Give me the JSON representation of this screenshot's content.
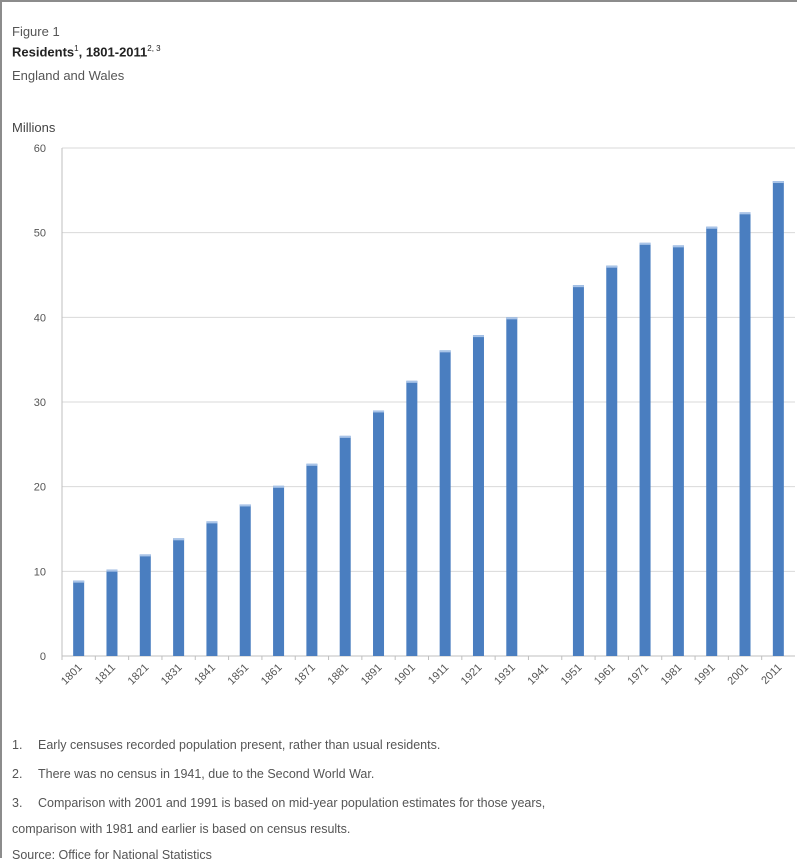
{
  "header": {
    "figure_label": "Figure 1",
    "title": "Residents",
    "title_sup": "1",
    "title_range": ", 1801-2011",
    "title_range_sup": "2, 3",
    "subtitle": "England and Wales"
  },
  "chart_data": {
    "type": "bar",
    "ylabel": "Millions",
    "xlabel": "",
    "ylim": [
      0,
      60
    ],
    "yticks": [
      0,
      10,
      20,
      30,
      40,
      50,
      60
    ],
    "grid": true,
    "legend": "none",
    "bar_color": "#4a7ec0",
    "bar_highlight": "#a9c4e8",
    "grid_color": "#d9d9d9",
    "categories": [
      "1801",
      "1811",
      "1821",
      "1831",
      "1841",
      "1851",
      "1861",
      "1871",
      "1881",
      "1891",
      "1901",
      "1911",
      "1921",
      "1931",
      "1941",
      "1951",
      "1961",
      "1971",
      "1981",
      "1991",
      "2001",
      "2011"
    ],
    "values": [
      8.9,
      10.2,
      12.0,
      13.9,
      15.9,
      17.9,
      20.1,
      22.7,
      26.0,
      29.0,
      32.5,
      36.1,
      37.9,
      40.0,
      null,
      43.8,
      46.1,
      48.8,
      48.5,
      50.7,
      52.4,
      56.1
    ]
  },
  "notes": {
    "n1_num": "1.",
    "n1": "Early censuses recorded population present, rather than usual residents.",
    "n2_num": "2.",
    "n2": "There was no census in 1941, due to the Second World War.",
    "n3_num": "3.",
    "n3": "Comparison with 2001 and 1991 is based on mid-year population estimates for those years,",
    "n3b": "comparison with 1981 and earlier is based on census results.",
    "source": "Source: Office for National Statistics"
  }
}
